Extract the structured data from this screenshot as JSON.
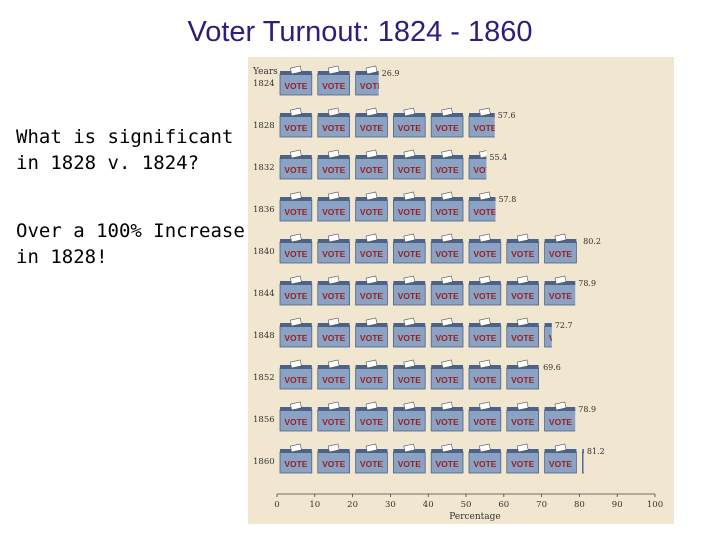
{
  "slide": {
    "title": "Voter Turnout:  1824 - 1860",
    "question": "What is significant in 1828 v. 1824?",
    "answer": "Over a 100% Increase in 1828!"
  },
  "colors": {
    "panel": "#f1e6cf",
    "box": "#8aa2c4",
    "box_dark": "#4d6386",
    "vote_label": "#9a1f1f",
    "title": "#2b1f7a"
  },
  "icon": {
    "name": "ballot-box-icon",
    "label": "VOTE",
    "unit_value": 10
  },
  "chart_data": {
    "type": "bar",
    "style": "pictograph",
    "categories": [
      "1824",
      "1828",
      "1832",
      "1836",
      "1840",
      "1844",
      "1848",
      "1852",
      "1856",
      "1860"
    ],
    "values": [
      26.9,
      57.6,
      55.4,
      57.8,
      80.2,
      78.9,
      72.7,
      69.6,
      78.9,
      81.2
    ],
    "value_labels": [
      "26.9",
      "57.6",
      "55.4",
      "57.8",
      "80.2",
      "78.9",
      "72.7",
      "69.6",
      "78.9",
      "81.2"
    ],
    "xlabel": "Percentage",
    "ylabel": "Years",
    "xlim": [
      0,
      100
    ],
    "xticks": [
      "0",
      "10",
      "20",
      "30",
      "40",
      "50",
      "60",
      "70",
      "80",
      "90",
      "100"
    ],
    "grid": false,
    "orientation": "horizontal"
  }
}
